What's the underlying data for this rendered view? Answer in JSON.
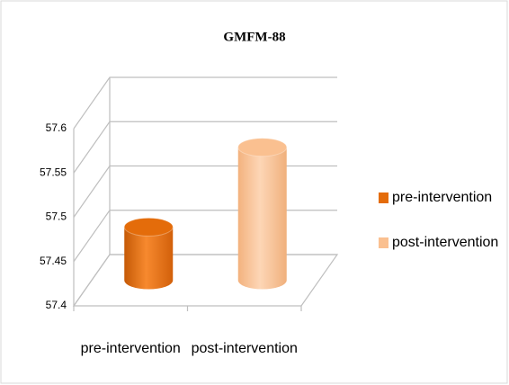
{
  "chart_data": {
    "type": "bar3d",
    "title": "GMFM-88",
    "categories": [
      "pre-intervention",
      "post-intervention"
    ],
    "series": [
      {
        "name": "pre-intervention",
        "color": "#e46c0a",
        "values": [
          57.46,
          null
        ]
      },
      {
        "name": "post-intervention",
        "color": "#fac090",
        "values": [
          null,
          57.55
        ]
      }
    ],
    "ylim": [
      57.4,
      57.6
    ],
    "yticks": [
      57.4,
      57.45,
      57.5,
      57.55,
      57.6
    ],
    "grid": true,
    "legend": "right"
  }
}
